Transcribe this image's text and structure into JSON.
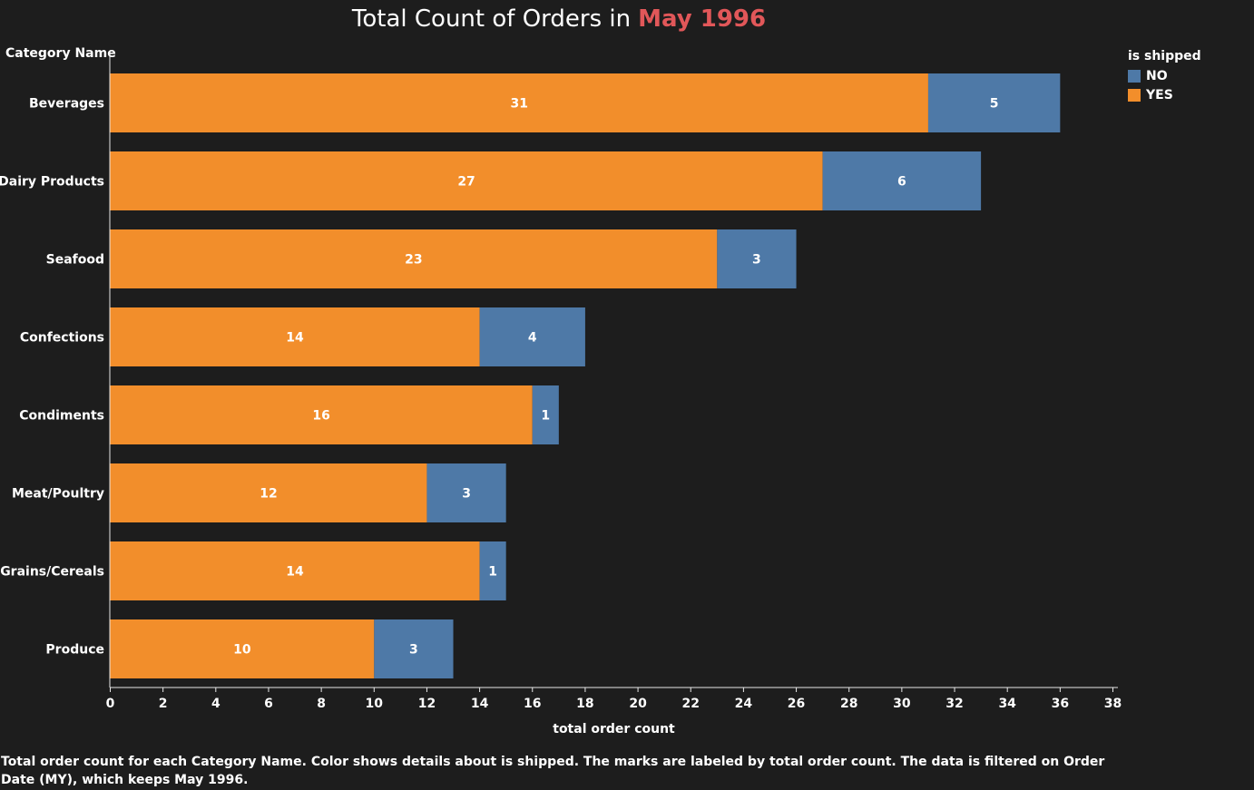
{
  "title": {
    "prefix": "Total Count of Orders in",
    "highlight": "May 1996"
  },
  "colors": {
    "background": "#1d1d1d",
    "yes": "#f28e2b",
    "no": "#4e79a7",
    "highlight": "#e15759",
    "text": "#ffffff"
  },
  "legend": {
    "title": "is shipped",
    "items": [
      {
        "label": "NO",
        "color": "#4e79a7"
      },
      {
        "label": "YES",
        "color": "#f28e2b"
      }
    ]
  },
  "chart_data": {
    "type": "bar",
    "orientation": "horizontal",
    "stacked": true,
    "title": "Total Count of Orders in  May 1996",
    "ylabel": "Category Name",
    "xlabel": "total order count",
    "categories": [
      "Beverages",
      "Dairy Products",
      "Seafood",
      "Confections",
      "Condiments",
      "Meat/Poultry",
      "Grains/Cereals",
      "Produce"
    ],
    "series": [
      {
        "name": "YES",
        "color": "#f28e2b",
        "values": [
          31,
          27,
          23,
          14,
          16,
          12,
          14,
          10
        ]
      },
      {
        "name": "NO",
        "color": "#4e79a7",
        "values": [
          5,
          6,
          3,
          4,
          1,
          3,
          1,
          3
        ]
      }
    ],
    "xlim": [
      0,
      38
    ],
    "xticks": [
      0,
      2,
      4,
      6,
      8,
      10,
      12,
      14,
      16,
      18,
      20,
      22,
      24,
      26,
      28,
      30,
      32,
      34,
      36,
      38
    ],
    "grid": false,
    "legend_position": "top-right"
  },
  "footnote": "Total order count for each Category Name.  Color shows details about is shipped.  The marks are labeled by total order count. The data is filtered on Order Date (MY), which keeps May 1996."
}
